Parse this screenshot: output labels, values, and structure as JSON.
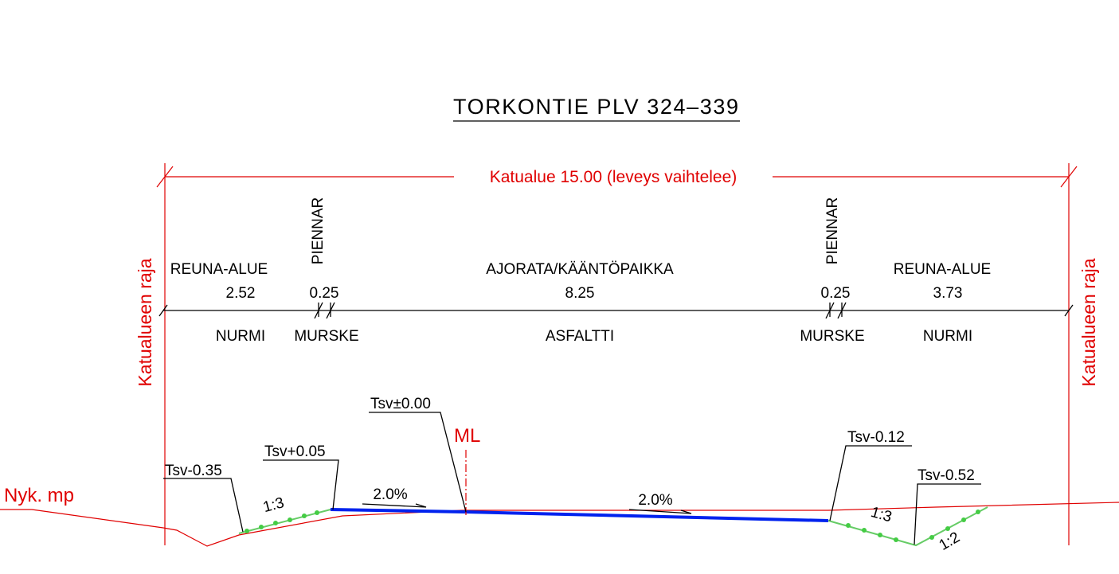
{
  "title": "TORKONTIE PLV 324–339",
  "total_width": "Katualue 15.00 (leveys vaihtelee)",
  "boundary_label": "Katualueen raja",
  "sections": [
    {
      "name": "REUNA-ALUE",
      "width": "2.52",
      "material": "NURMI"
    },
    {
      "name": "PIENNAR",
      "width": "0.25",
      "material": "MURSKE"
    },
    {
      "name": "AJORATA/KÄÄNTÖPAIKKA",
      "width": "8.25",
      "material": "ASFALTTI"
    },
    {
      "name": "PIENNAR",
      "width": "0.25",
      "material": "MURSKE"
    },
    {
      "name": "REUNA-ALUE",
      "width": "3.73",
      "material": "NURMI"
    }
  ],
  "levels": [
    "Tsv-0.35",
    "Tsv+0.05",
    "Tsv±0.00",
    "Tsv-0.12",
    "Tsv-0.52"
  ],
  "centerline": "ML",
  "cross_slopes": [
    "2.0%",
    "2.0%"
  ],
  "side_slopes": [
    "1:3",
    "1:3",
    "1:2"
  ],
  "existing_ground": "Nyk. mp"
}
